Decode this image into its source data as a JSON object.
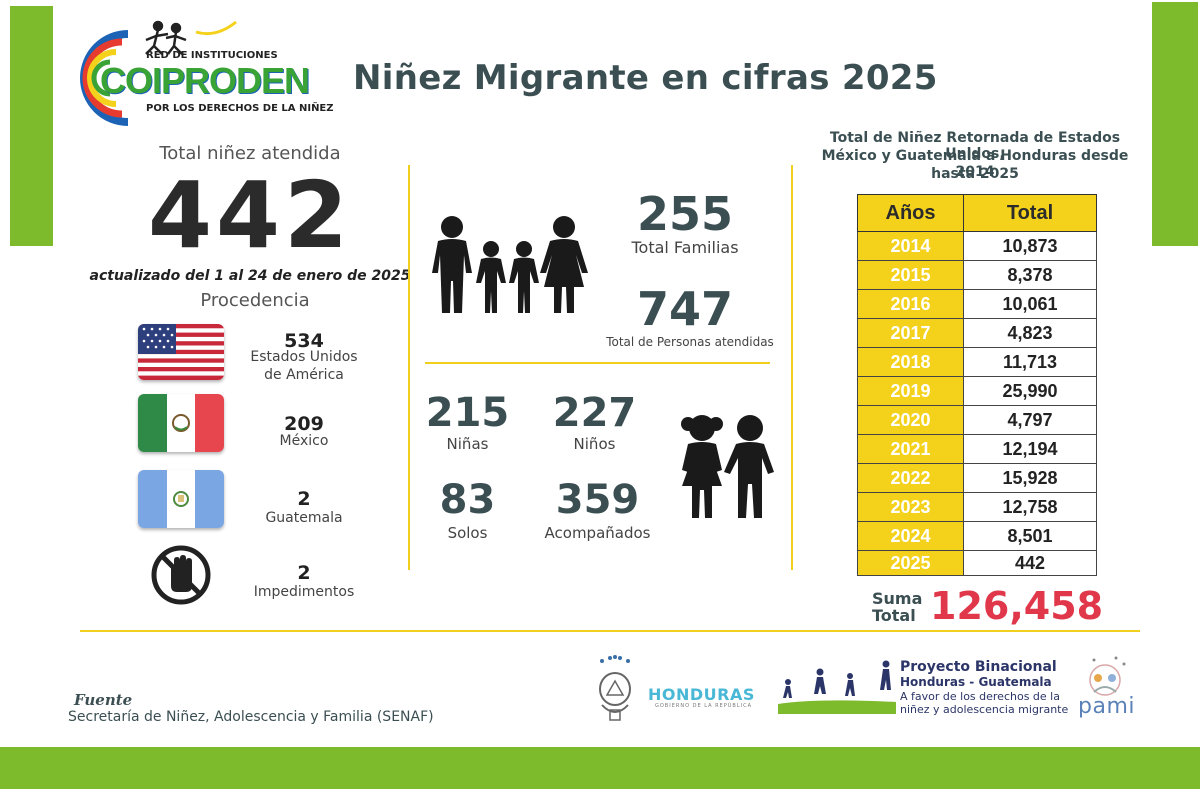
{
  "header": {
    "logo_top": "RED DE INSTITUCIONES",
    "logo_name": "COIPRODEN",
    "logo_bottom": "POR LOS DERECHOS DE LA NIÑEZ",
    "title": "Niñez Migrante en cifras 2025"
  },
  "left": {
    "total_label": "Total niñez atendida",
    "total_value": "442",
    "updated": "actualizado del 1 al 24 de enero de 2025",
    "procedencia_label": "Procedencia",
    "origins": [
      {
        "value": "534",
        "label_line1": "Estados Unidos",
        "label_line2": "de América"
      },
      {
        "value": "209",
        "label_line1": "México"
      },
      {
        "value": "2",
        "label_line1": "Guatemala"
      },
      {
        "value": "2",
        "label_line1": "Impedimentos"
      }
    ]
  },
  "middle": {
    "families_value": "255",
    "families_label": "Total Familias",
    "persons_value": "747",
    "persons_label": "Total de Personas atendidas",
    "girls_value": "215",
    "girls_label": "Niñas",
    "boys_value": "227",
    "boys_label": "Niños",
    "alone_value": "83",
    "alone_label": "Solos",
    "accompanied_value": "359",
    "accompanied_label": "Acompañados"
  },
  "right": {
    "heading_line1": "Total de Niñez Retornada de Estados Unidos,",
    "heading_line2": "México y Guatemala a Honduras desde 2014",
    "heading_line3": "hasta 2025",
    "col_years": "Años",
    "col_total": "Total",
    "rows": [
      {
        "year": "2014",
        "total": "10,873"
      },
      {
        "year": "2015",
        "total": "8,378"
      },
      {
        "year": "2016",
        "total": "10,061"
      },
      {
        "year": "2017",
        "total": "4,823"
      },
      {
        "year": "2018",
        "total": "11,713"
      },
      {
        "year": "2019",
        "total": "25,990"
      },
      {
        "year": "2020",
        "total": "4,797"
      },
      {
        "year": "2021",
        "total": "12,194"
      },
      {
        "year": "2022",
        "total": "15,928"
      },
      {
        "year": "2023",
        "total": "12,758"
      },
      {
        "year": "2024",
        "total": "8,501"
      },
      {
        "year": "2025",
        "total": "442"
      }
    ],
    "sum_label_1": "Suma",
    "sum_label_2": "Total",
    "sum_value": "126,458"
  },
  "footer": {
    "fuente_label": "Fuente",
    "fuente_text": "Secretaría de Niñez, Adolescencia y Familia (SENAF)",
    "honduras": "HONDURAS",
    "honduras_sub": "GOBIERNO DE LA REPÚBLICA",
    "project_line1": "Proyecto Binacional",
    "project_line2": "Honduras - Guatemala",
    "project_line3": "A favor de los derechos de la",
    "project_line4": "niñez y adolescencia migrante",
    "pami": "pami"
  },
  "colors": {
    "green": "#7dbb2c",
    "yellow": "#f4d21c",
    "red": "#e0384a",
    "dark_text": "#3b4f53"
  }
}
